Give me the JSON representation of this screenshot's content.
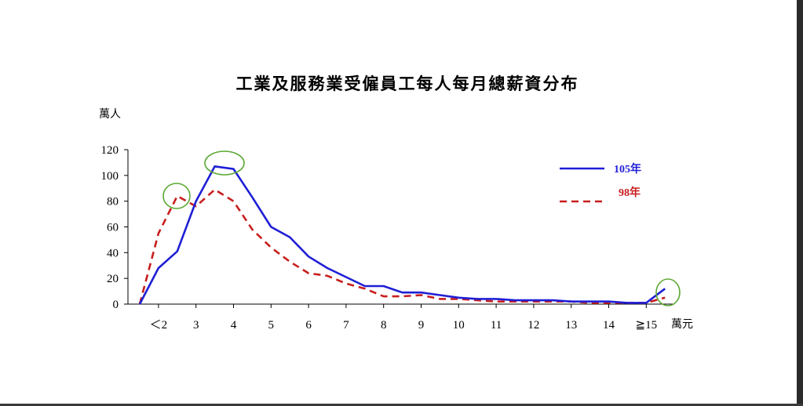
{
  "chart_data": {
    "type": "line",
    "title": "工業及服務業受僱員工每人每月總薪資分布",
    "ylabel": "萬人",
    "xlabel": "萬元",
    "ylim": [
      0,
      120
    ],
    "y_ticks": [
      "0",
      "20",
      "40",
      "60",
      "80",
      "100",
      "120"
    ],
    "x_ticks": [
      "＜2",
      "3",
      "4",
      "5",
      "6",
      "7",
      "8",
      "9",
      "10",
      "11",
      "12",
      "13",
      "14",
      "≧15"
    ],
    "x": [
      1.5,
      2,
      2.5,
      3,
      3.5,
      4,
      4.5,
      5,
      5.5,
      6,
      6.5,
      7,
      7.5,
      8,
      8.5,
      9,
      9.5,
      10,
      10.5,
      11,
      11.5,
      12,
      12.5,
      13,
      13.5,
      14,
      14.5,
      15,
      15.5
    ],
    "series": [
      {
        "name": "105年",
        "color": "#1f1fd6",
        "style": "solid",
        "values": [
          0,
          28,
          41,
          80,
          107,
          105,
          83,
          60,
          52,
          37,
          28,
          21,
          14,
          14,
          9,
          9,
          7,
          5,
          4,
          4,
          3,
          3,
          3,
          2,
          2,
          2,
          1,
          1,
          12
        ]
      },
      {
        "name": "98年",
        "color": "#c81e1e",
        "style": "dashed",
        "values": [
          0,
          55,
          84,
          76,
          89,
          80,
          58,
          44,
          33,
          24,
          22,
          16,
          12,
          6,
          6,
          7,
          4,
          4,
          3,
          2,
          2,
          2,
          2,
          2,
          1,
          1,
          1,
          1,
          5
        ]
      }
    ],
    "legend_position": "top-right",
    "highlights": [
      "ellipse",
      "ellipse",
      "ellipse",
      "ellipse"
    ],
    "highlight_color": "#5aa832",
    "grid": false
  }
}
